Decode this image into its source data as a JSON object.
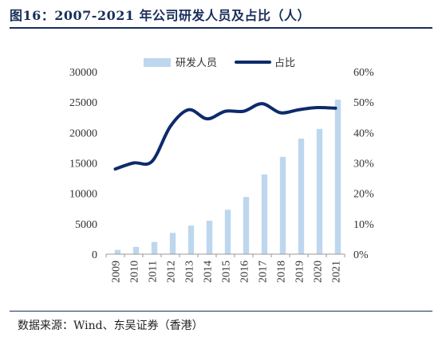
{
  "header": {
    "title": "图16：2007-2021 年公司研发人员及占比（人）"
  },
  "footer": {
    "source": "数据来源：Wind、东吴证券（香港）"
  },
  "chart_data": {
    "type": "bar",
    "categories": [
      "2009",
      "2010",
      "2011",
      "2012",
      "2013",
      "2014",
      "2015",
      "2016",
      "2017",
      "2018",
      "2019",
      "2020",
      "2021"
    ],
    "series": [
      {
        "name": "研发人员",
        "type": "bar",
        "axis": "left",
        "color": "#bdd7ee",
        "values": [
          700,
          1200,
          2000,
          3500,
          4700,
          5500,
          7300,
          9400,
          13100,
          16000,
          19000,
          20600,
          25400
        ]
      },
      {
        "name": "占比",
        "type": "line",
        "axis": "right",
        "color": "#0d2a6b",
        "values": [
          28,
          30,
          30.5,
          42,
          47.5,
          44.5,
          47,
          47,
          49.5,
          46.5,
          47.5,
          48.2,
          48
        ]
      }
    ],
    "y_left": {
      "min": 0,
      "max": 30000,
      "ticks": [
        "0",
        "5000",
        "10000",
        "15000",
        "20000",
        "25000",
        "30000"
      ]
    },
    "y_right": {
      "min": 0,
      "max": 60,
      "ticks": [
        "0%",
        "10%",
        "20%",
        "30%",
        "40%",
        "50%",
        "60%"
      ]
    },
    "legend": "top-center"
  }
}
